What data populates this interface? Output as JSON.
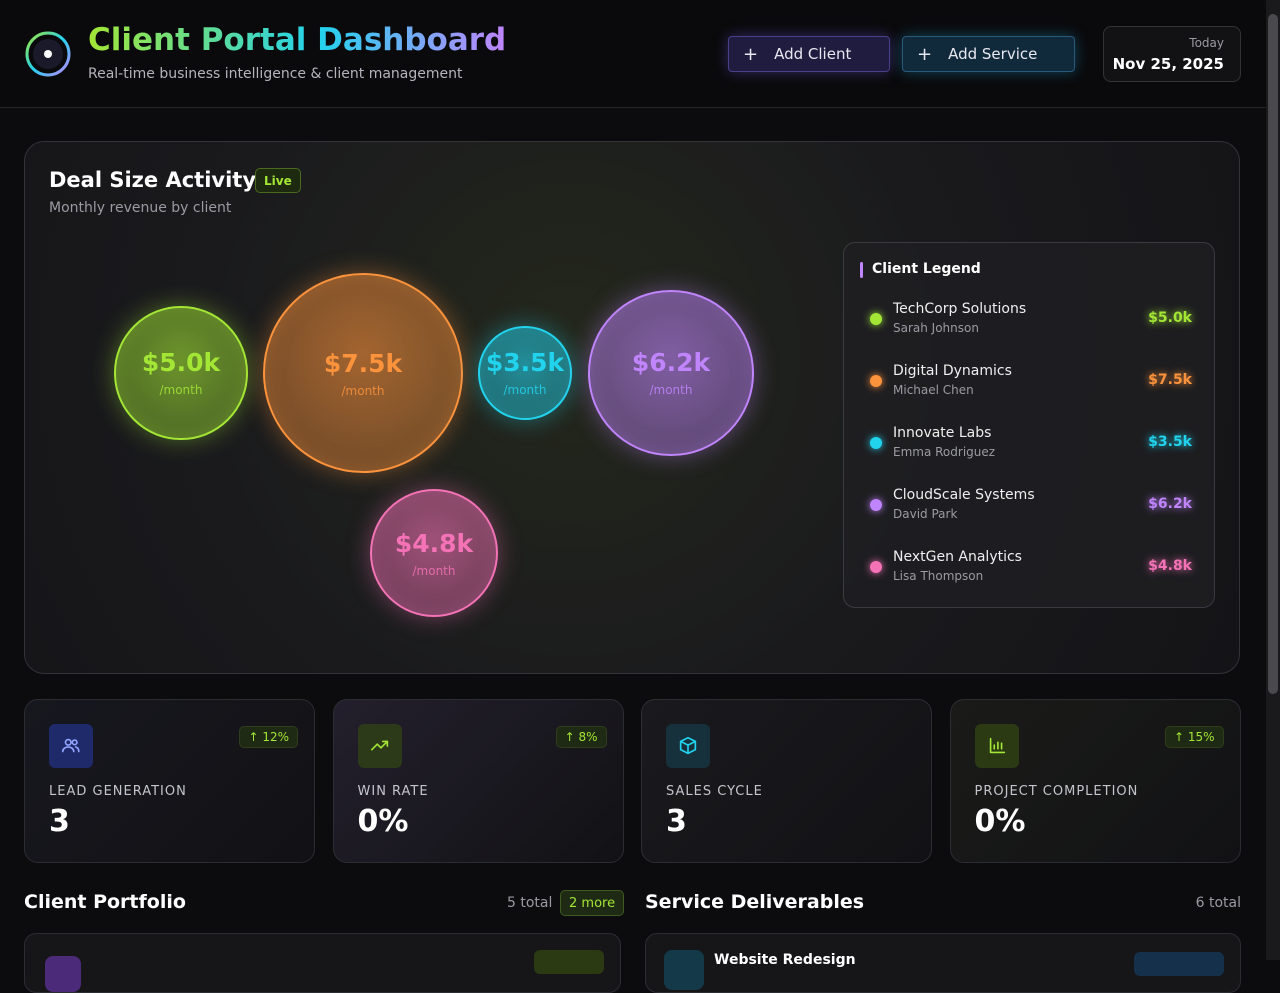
{
  "header": {
    "title": "Client Portal Dashboard",
    "subtitle": "Real-time business intelligence & client management",
    "buttons": [
      "Add Client",
      "Add Service"
    ],
    "date_label": "Today",
    "date": "Nov 25, 2025"
  },
  "deal_chart": {
    "title": "Deal Size Activity",
    "badge": "Live",
    "subtitle": "Monthly revenue by client",
    "unit": "/month",
    "legend_title": "Client Legend",
    "clients": [
      {
        "name": "TechCorp Solutions",
        "contact": "Sarah Johnson",
        "value": 5000,
        "value_label": "$5.0k",
        "color": "#a3e635"
      },
      {
        "name": "Digital Dynamics",
        "contact": "Michael Chen",
        "value": 7500,
        "value_label": "$7.5k",
        "color": "#fb923c"
      },
      {
        "name": "Innovate Labs",
        "contact": "Emma Rodriguez",
        "value": 3500,
        "value_label": "$3.5k",
        "color": "#22d3ee"
      },
      {
        "name": "CloudScale Systems",
        "contact": "David Park",
        "value": 6200,
        "value_label": "$6.2k",
        "color": "#c084fc"
      },
      {
        "name": "NextGen Analytics",
        "contact": "Lisa Thompson",
        "value": 4800,
        "value_label": "$4.8k",
        "color": "#f472b6"
      }
    ]
  },
  "stats": [
    {
      "label": "LEAD GENERATION",
      "value": "3",
      "change": "↑ 12%"
    },
    {
      "label": "WIN RATE",
      "value": "0%",
      "change": "↑ 8%"
    },
    {
      "label": "SALES CYCLE",
      "value": "3"
    },
    {
      "label": "PROJECT COMPLETION",
      "value": "0%",
      "change": "↑ 15%"
    }
  ],
  "portfolio": {
    "title": "Client Portfolio",
    "total": "5 total",
    "more": "2 more"
  },
  "deliverables": {
    "title": "Service Deliverables",
    "total": "6 total",
    "items": [
      "Website Redesign"
    ]
  }
}
